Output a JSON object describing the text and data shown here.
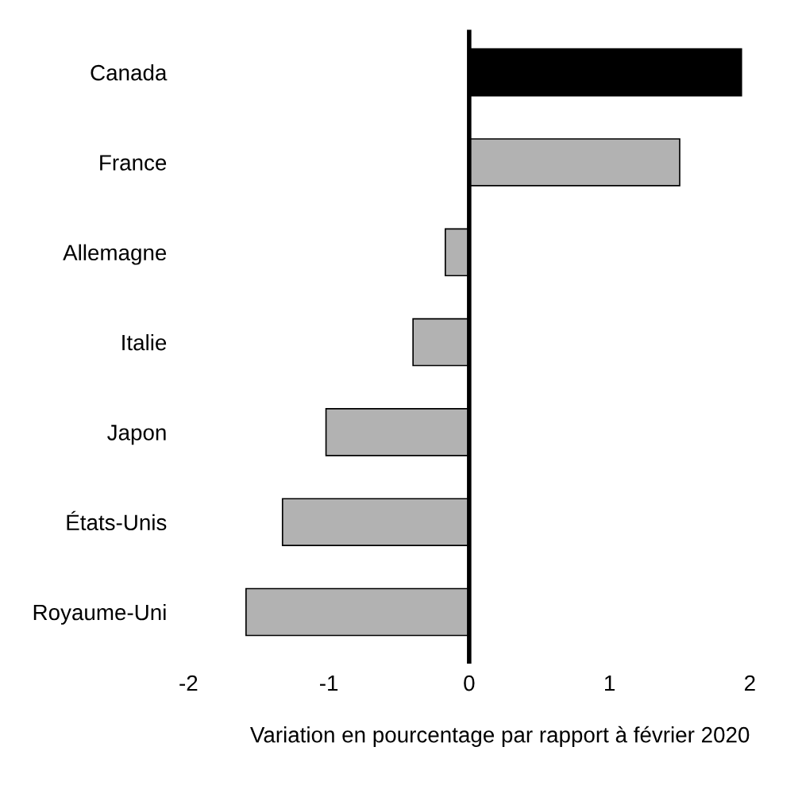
{
  "chart_data": {
    "type": "bar",
    "orientation": "horizontal",
    "xlabel": "Variation en pourcentage par rapport à février 2020",
    "categories": [
      "Canada",
      "France",
      "Allemagne",
      "Italie",
      "Japon",
      "États-Unis",
      "Royaume-Uni"
    ],
    "values": [
      1.94,
      1.5,
      -0.17,
      -0.4,
      -1.02,
      -1.33,
      -1.59
    ],
    "colors": [
      "#000000",
      "#b2b2b2",
      "#b2b2b2",
      "#b2b2b2",
      "#b2b2b2",
      "#b2b2b2",
      "#b2b2b2"
    ],
    "xlim": [
      -2,
      2
    ],
    "xticks": [
      -2,
      -1,
      0,
      1,
      2
    ]
  }
}
